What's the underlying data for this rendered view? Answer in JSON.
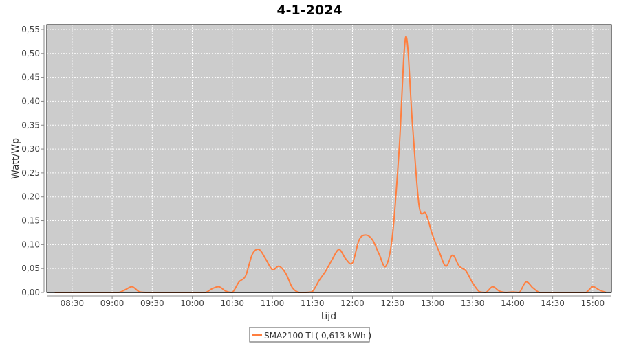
{
  "chart_data": {
    "type": "line",
    "title": "4-1-2024",
    "xlabel": "tijd",
    "ylabel": "Watt/Wp",
    "xlim": [
      "08:11",
      "15:14"
    ],
    "ylim": [
      0,
      0.56
    ],
    "grid": true,
    "legend_position": "bottom",
    "x_ticks": [
      "08:30",
      "09:00",
      "09:30",
      "10:00",
      "10:30",
      "11:00",
      "11:30",
      "12:00",
      "12:30",
      "13:00",
      "13:30",
      "14:00",
      "14:30",
      "15:00"
    ],
    "y_ticks": [
      "0,00",
      "0,05",
      "0,10",
      "0,15",
      "0,20",
      "0,25",
      "0,30",
      "0,35",
      "0,40",
      "0,45",
      "0,50",
      "0,55"
    ],
    "series": [
      {
        "name": "SMA2100 TL( 0,613 kWh )",
        "color": "#ff7f3f",
        "x": [
          "08:17",
          "08:25",
          "08:30",
          "08:35",
          "08:40",
          "08:45",
          "08:50",
          "08:55",
          "09:00",
          "09:05",
          "09:10",
          "09:15",
          "09:20",
          "09:25",
          "09:30",
          "09:35",
          "09:40",
          "09:45",
          "09:50",
          "09:55",
          "10:00",
          "10:05",
          "10:10",
          "10:15",
          "10:20",
          "10:25",
          "10:30",
          "10:35",
          "10:40",
          "10:45",
          "10:50",
          "10:55",
          "11:00",
          "11:05",
          "11:10",
          "11:15",
          "11:20",
          "11:25",
          "11:30",
          "11:35",
          "11:40",
          "11:45",
          "11:50",
          "11:55",
          "12:00",
          "12:05",
          "12:10",
          "12:15",
          "12:20",
          "12:25",
          "12:30",
          "12:35",
          "12:40",
          "12:45",
          "12:50",
          "12:55",
          "13:00",
          "13:05",
          "13:10",
          "13:15",
          "13:20",
          "13:25",
          "13:30",
          "13:35",
          "13:40",
          "13:45",
          "13:50",
          "13:55",
          "14:00",
          "14:05",
          "14:10",
          "14:15",
          "14:20",
          "14:25",
          "14:30",
          "14:35",
          "14:40",
          "14:45",
          "14:50",
          "14:55",
          "15:00",
          "15:05",
          "15:10"
        ],
        "y": [
          0,
          0,
          0,
          0,
          0,
          0,
          0,
          0,
          0,
          0,
          0.006,
          0.012,
          0.002,
          0,
          0,
          0,
          0,
          0,
          0,
          0,
          0,
          0,
          0,
          0.008,
          0.012,
          0.003,
          0,
          0.022,
          0.035,
          0.08,
          0.09,
          0.07,
          0.048,
          0.055,
          0.04,
          0.01,
          0,
          0,
          0.002,
          0.025,
          0.045,
          0.07,
          0.09,
          0.07,
          0.062,
          0.11,
          0.12,
          0.11,
          0.08,
          0.055,
          0.12,
          0.3,
          0.535,
          0.35,
          0.18,
          0.165,
          0.12,
          0.085,
          0.055,
          0.078,
          0.055,
          0.045,
          0.02,
          0.002,
          0,
          0.012,
          0.003,
          0,
          0.001,
          0,
          0.022,
          0.01,
          0,
          0,
          0,
          0,
          0,
          0,
          0,
          0,
          0.012,
          0.005,
          0
        ]
      }
    ]
  }
}
